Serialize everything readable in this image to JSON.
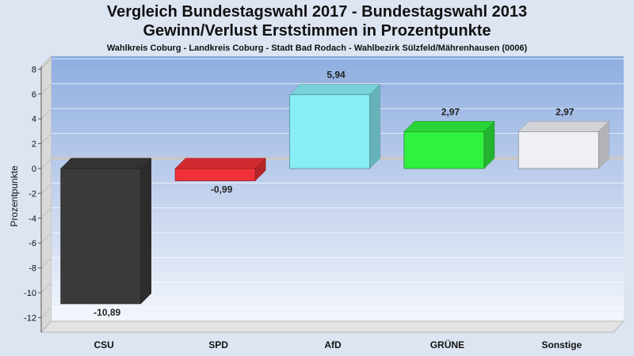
{
  "chart_data": {
    "type": "bar",
    "title": "Vergleich Bundestagswahl 2017 - Bundestagswahl 2013",
    "title2": "Gewinn/Verlust Erststimmen in Prozentpunkte",
    "subtitle": "Wahlkreis Coburg - Landkreis Coburg - Stadt Bad Rodach - Wahlbezirk Sülzfeld/Mährenhausen (0006)",
    "ylabel": "Prozentpunkte",
    "xlabel": "",
    "ylim": [
      -13,
      8
    ],
    "yticks": [
      8,
      6,
      4,
      2,
      0,
      -2,
      -4,
      -6,
      -8,
      -10,
      -12
    ],
    "grid": true,
    "legend": "none",
    "categories": [
      "CSU",
      "SPD",
      "AfD",
      "GRÜNE",
      "Sonstige"
    ],
    "values": [
      -10.89,
      -0.99,
      5.94,
      2.97,
      2.97
    ],
    "value_labels": [
      "-10,89",
      "-0,99",
      "5,94",
      "2,97",
      "2,97"
    ],
    "colors": [
      "#3a3a3a",
      "#f03038",
      "#88eef6",
      "#30f040",
      "#eef0f6"
    ]
  }
}
